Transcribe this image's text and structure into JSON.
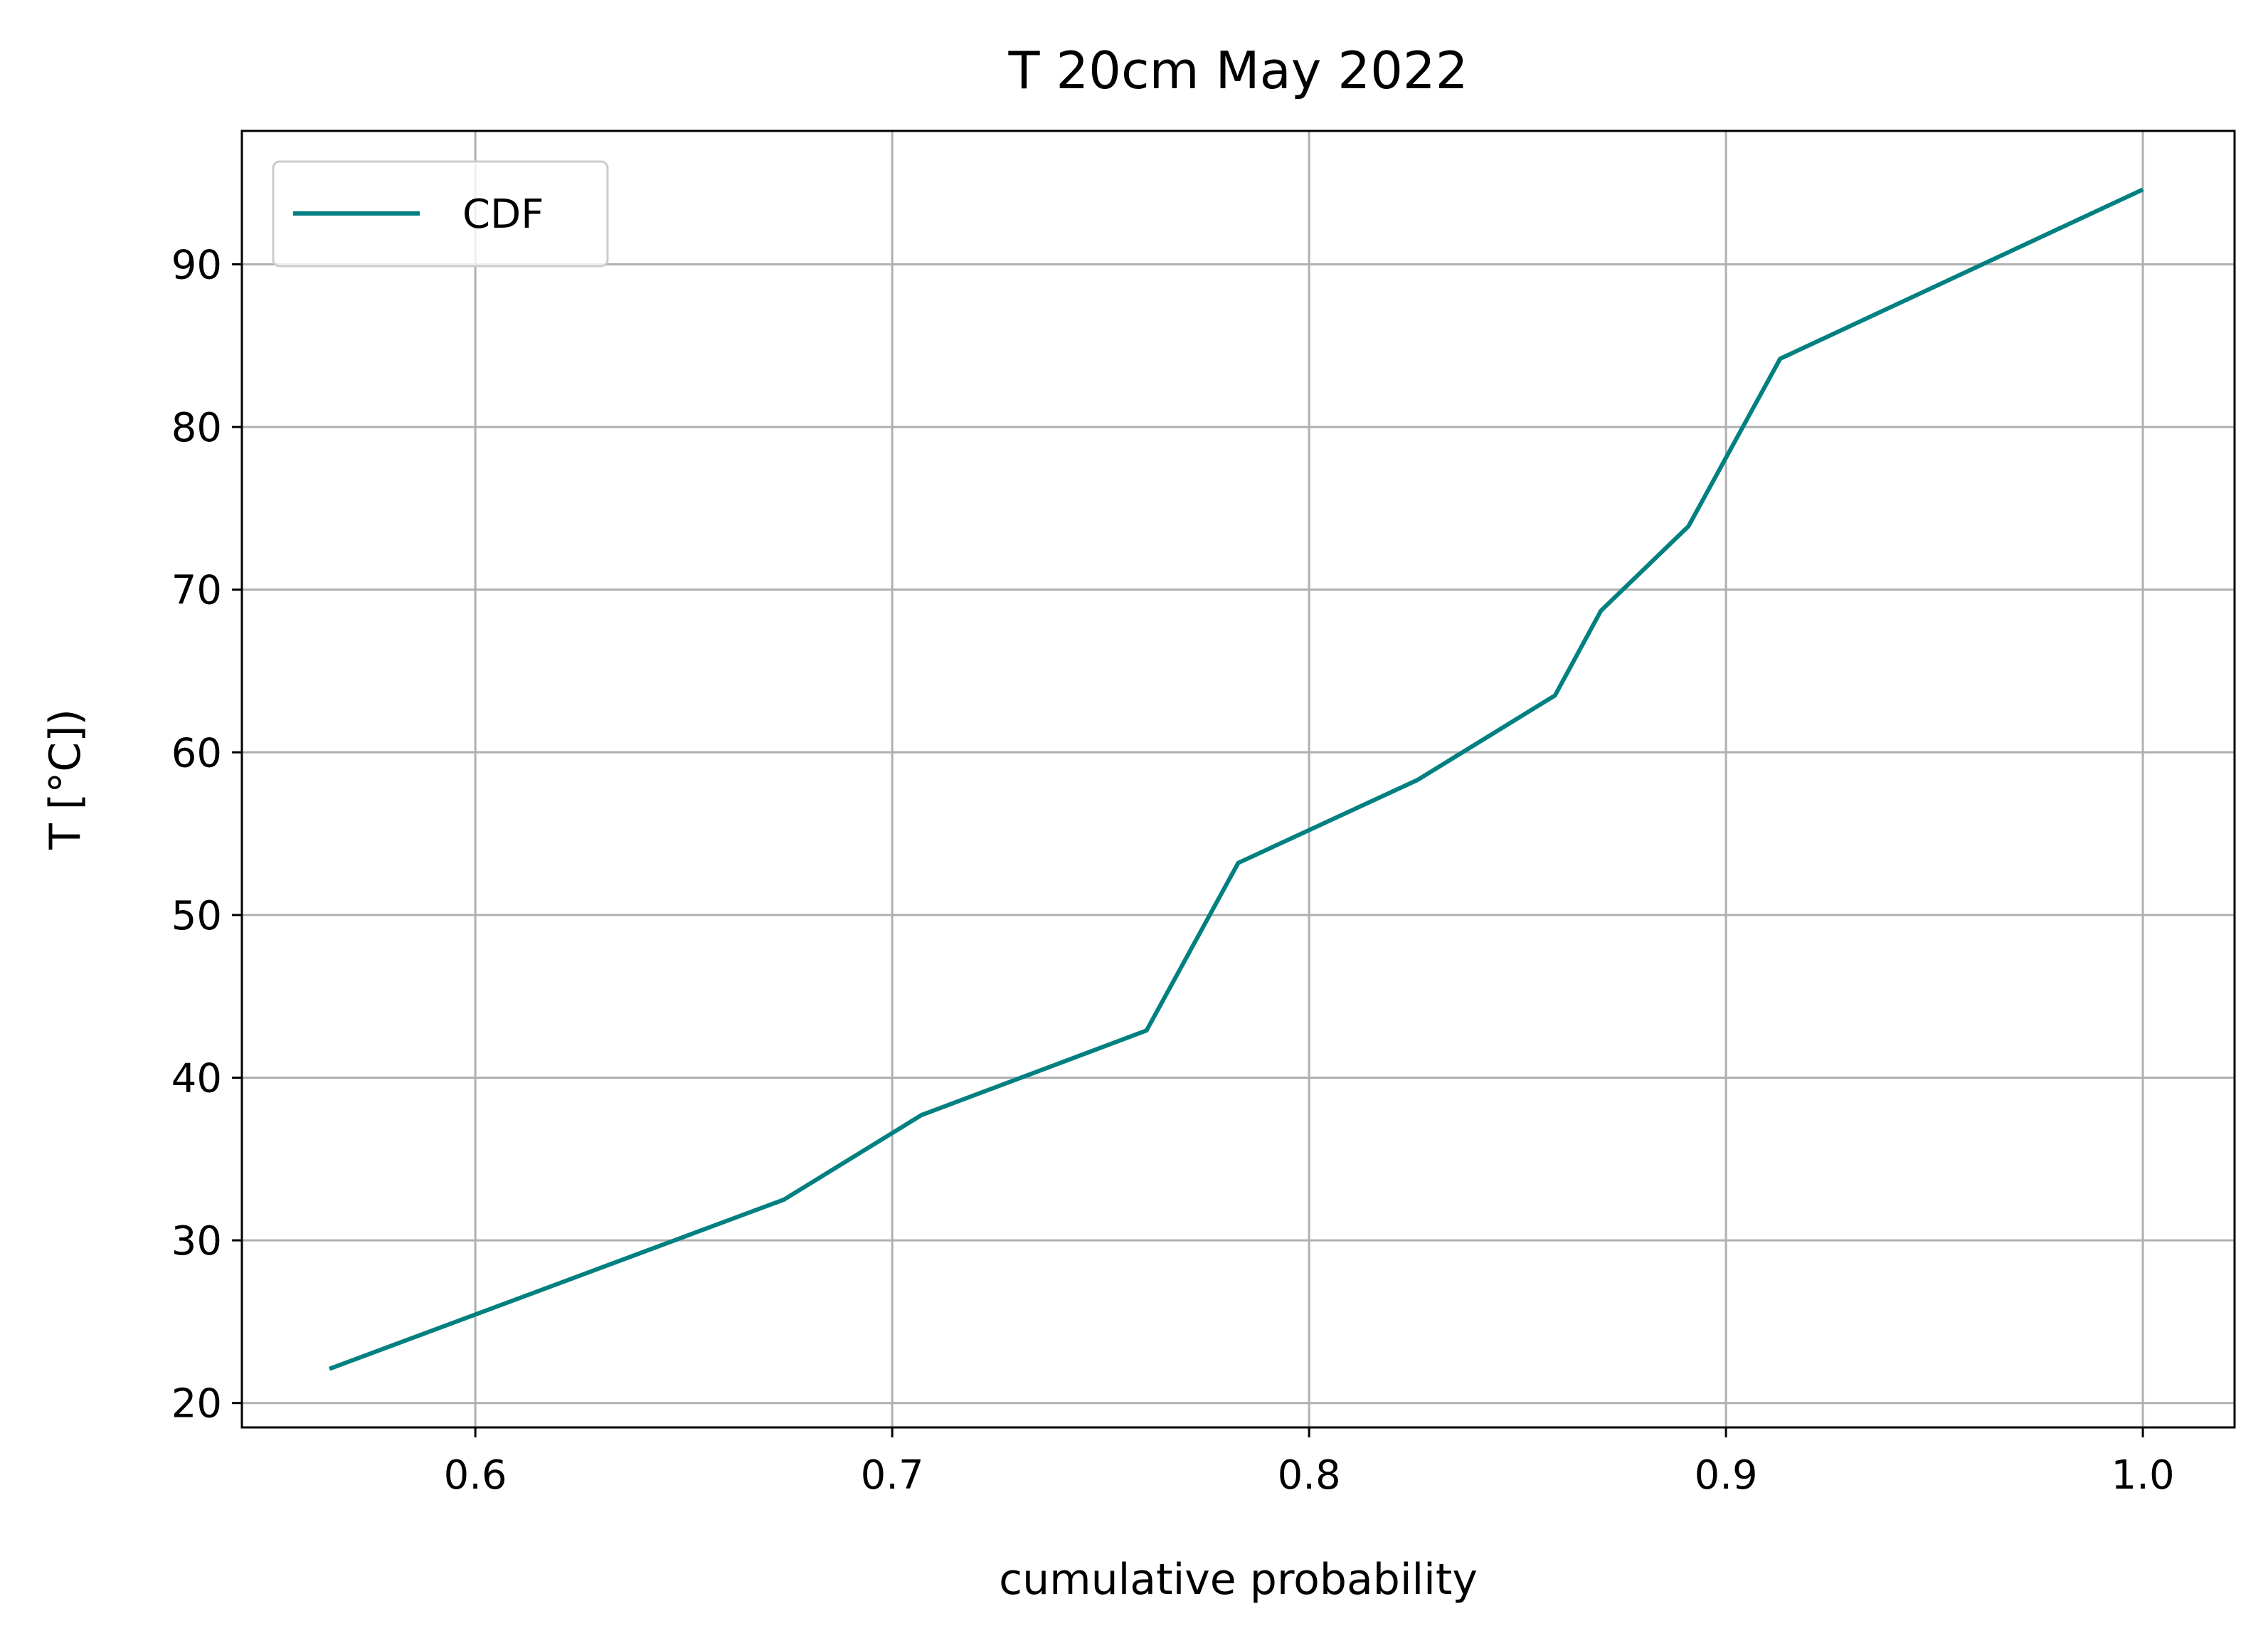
{
  "chart_data": {
    "type": "line",
    "title": "T 20cm May 2022",
    "xlabel": "cumulative probability",
    "ylabel": "T [°C])",
    "xlim": [
      0.544,
      1.022
    ],
    "ylim": [
      18.5,
      98.2
    ],
    "xticks": [
      0.6,
      0.7,
      0.8,
      0.9,
      1.0
    ],
    "xtick_labels": [
      "0.6",
      "0.7",
      "0.8",
      "0.9",
      "1.0"
    ],
    "yticks": [
      20,
      30,
      40,
      50,
      60,
      70,
      80,
      90
    ],
    "ytick_labels": [
      "20",
      "30",
      "40",
      "50",
      "60",
      "70",
      "80",
      "90"
    ],
    "grid": true,
    "legend_position": "top-left",
    "series": [
      {
        "name": "CDF",
        "color": "#008080",
        "x": [
          0.565,
          0.674,
          0.707,
          0.761,
          0.783,
          0.826,
          0.859,
          0.87,
          0.891,
          0.913,
          1.0
        ],
        "y": [
          22.1,
          32.5,
          37.7,
          42.9,
          53.2,
          58.3,
          63.5,
          68.7,
          73.9,
          84.2,
          94.6
        ]
      }
    ]
  }
}
